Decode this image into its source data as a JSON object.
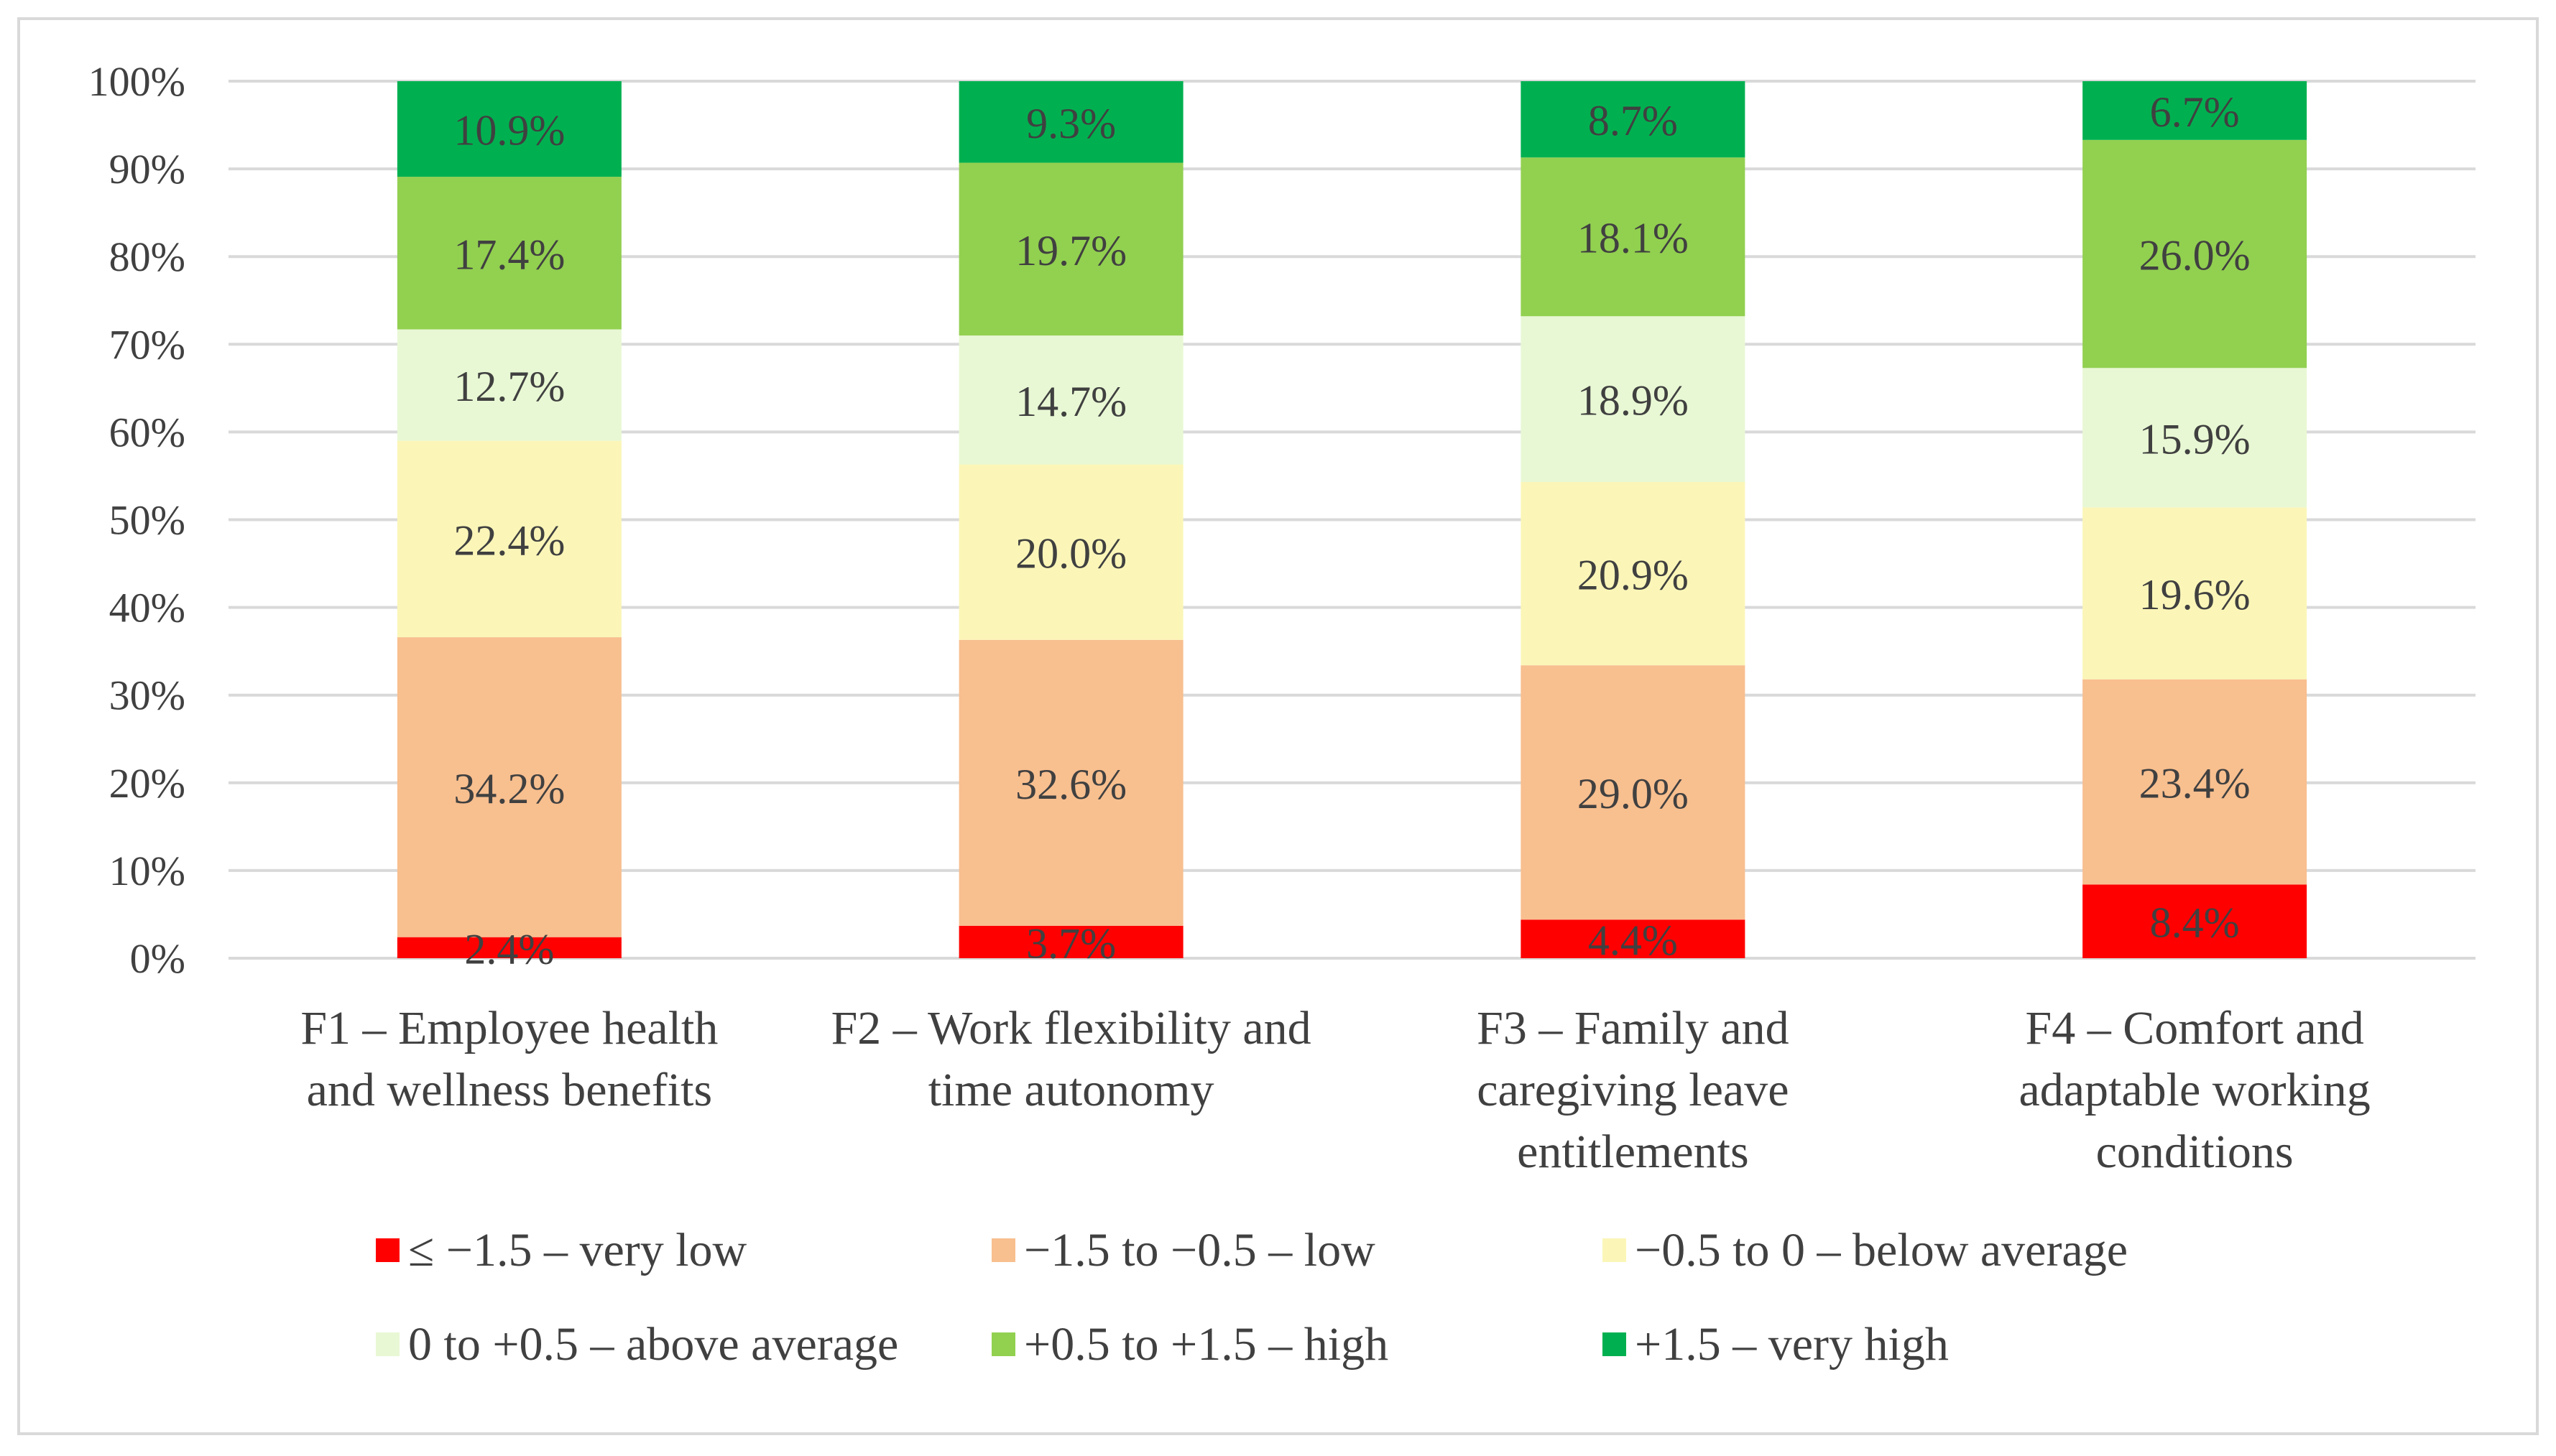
{
  "chart_data": {
    "type": "bar",
    "stacked": true,
    "normalized": true,
    "title": "",
    "xlabel": "",
    "ylabel": "",
    "ylim": [
      0,
      100
    ],
    "yticks": [
      0,
      10,
      20,
      30,
      40,
      50,
      60,
      70,
      80,
      90,
      100
    ],
    "ytick_labels": [
      "0%",
      "10%",
      "20%",
      "30%",
      "40%",
      "50%",
      "60%",
      "70%",
      "80%",
      "90%",
      "100%"
    ],
    "grid": true,
    "legend_position": "bottom",
    "categories": [
      [
        "F1 – Employee health",
        "and wellness benefits"
      ],
      [
        "F2 – Work flexibility and",
        "time autonomy"
      ],
      [
        "F3 – Family and",
        "caregiving leave",
        "entitlements"
      ],
      [
        "F4 – Comfort and",
        "adaptable working",
        "conditions"
      ]
    ],
    "series": [
      {
        "name": "≤ −1.5 – very low",
        "color": "#ff0000",
        "values": [
          2.4,
          3.7,
          4.4,
          8.4
        ],
        "labels": [
          "2.4%",
          "3.7%",
          "4.4%",
          "8.4%"
        ]
      },
      {
        "name": "−1.5 to −0.5 – low",
        "color": "#f8bf8f",
        "values": [
          34.2,
          32.6,
          29.0,
          23.4
        ],
        "labels": [
          "34.2%",
          "32.6%",
          "29.0%",
          "23.4%"
        ]
      },
      {
        "name": "−0.5 to 0 – below average",
        "color": "#fbf6b8",
        "values": [
          22.4,
          20.0,
          20.9,
          19.6
        ],
        "labels": [
          "22.4%",
          "20.0%",
          "20.9%",
          "19.6%"
        ]
      },
      {
        "name": "0 to +0.5 – above average",
        "color": "#e8f8d4",
        "values": [
          12.7,
          14.7,
          18.9,
          15.9
        ],
        "labels": [
          "12.7%",
          "14.7%",
          "18.9%",
          "15.9%"
        ]
      },
      {
        "name": "+0.5 to +1.5 – high",
        "color": "#92d050",
        "values": [
          17.4,
          19.7,
          18.1,
          26.0
        ],
        "labels": [
          "17.4%",
          "19.7%",
          "18.1%",
          "26.0%"
        ]
      },
      {
        "name": "+1.5 – very high",
        "color": "#00b050",
        "values": [
          10.9,
          9.3,
          8.7,
          6.7
        ],
        "labels": [
          "10.9%",
          "9.3%",
          "8.7%",
          "6.7%"
        ]
      }
    ]
  }
}
